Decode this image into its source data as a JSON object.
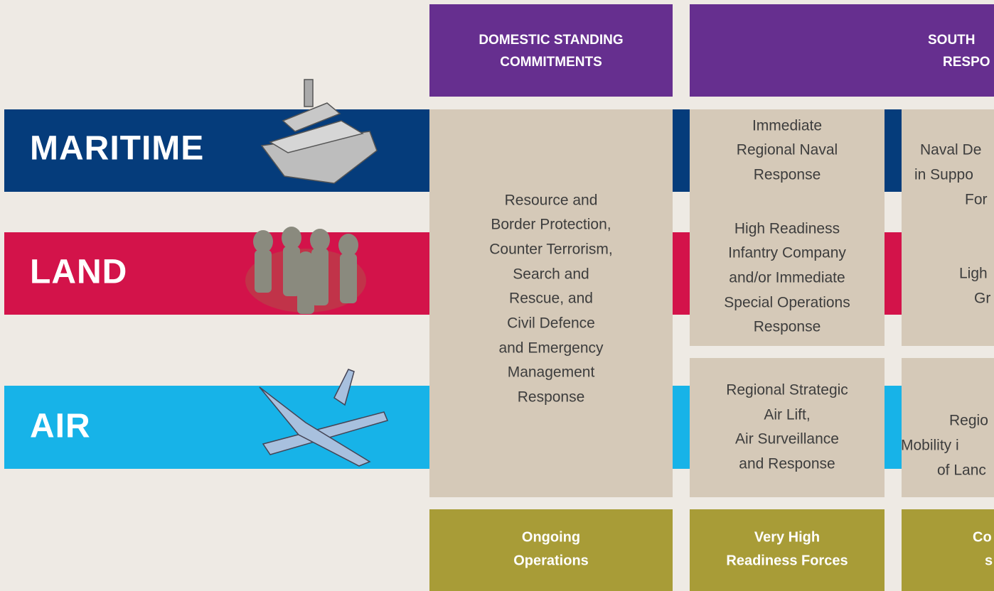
{
  "header": {
    "columns": [
      {
        "lines": [
          "DOMESTIC STANDING",
          "COMMITMENTS"
        ]
      },
      {
        "lines": [
          "SOUTH",
          "RESPO"
        ]
      }
    ]
  },
  "rows": [
    "MARITIME",
    "LAND",
    "AIR"
  ],
  "cells": {
    "domestic": {
      "lines": [
        "Resource and",
        "Border Protection,",
        "Counter Terrorism,",
        "Search and",
        "Rescue, and",
        "Civil Defence",
        "and Emergency",
        "Management",
        "Response"
      ]
    },
    "very_high": [
      {
        "lines": [
          "Immediate",
          "Regional Naval",
          "Response"
        ]
      },
      {
        "lines": [
          "High Readiness",
          "Infantry Company",
          "and/or Immediate",
          "Special Operations",
          "Response"
        ]
      },
      {
        "lines": [
          "Regional Strategic",
          "Air Lift,",
          "Air Surveillance",
          "and Response"
        ]
      }
    ],
    "third": [
      {
        "lines": [
          "Naval De",
          "in Suppo",
          "For"
        ]
      },
      {
        "lines": [
          "Ligh",
          "Gr"
        ]
      },
      {
        "lines": [
          "Regio",
          "Mobility i",
          "of Lanc"
        ]
      }
    ]
  },
  "footer": [
    {
      "lines": [
        "Ongoing",
        "Operations"
      ]
    },
    {
      "lines": [
        "Very High",
        "Readiness Forces"
      ]
    },
    {
      "lines": [
        "Co",
        "s"
      ]
    }
  ]
}
